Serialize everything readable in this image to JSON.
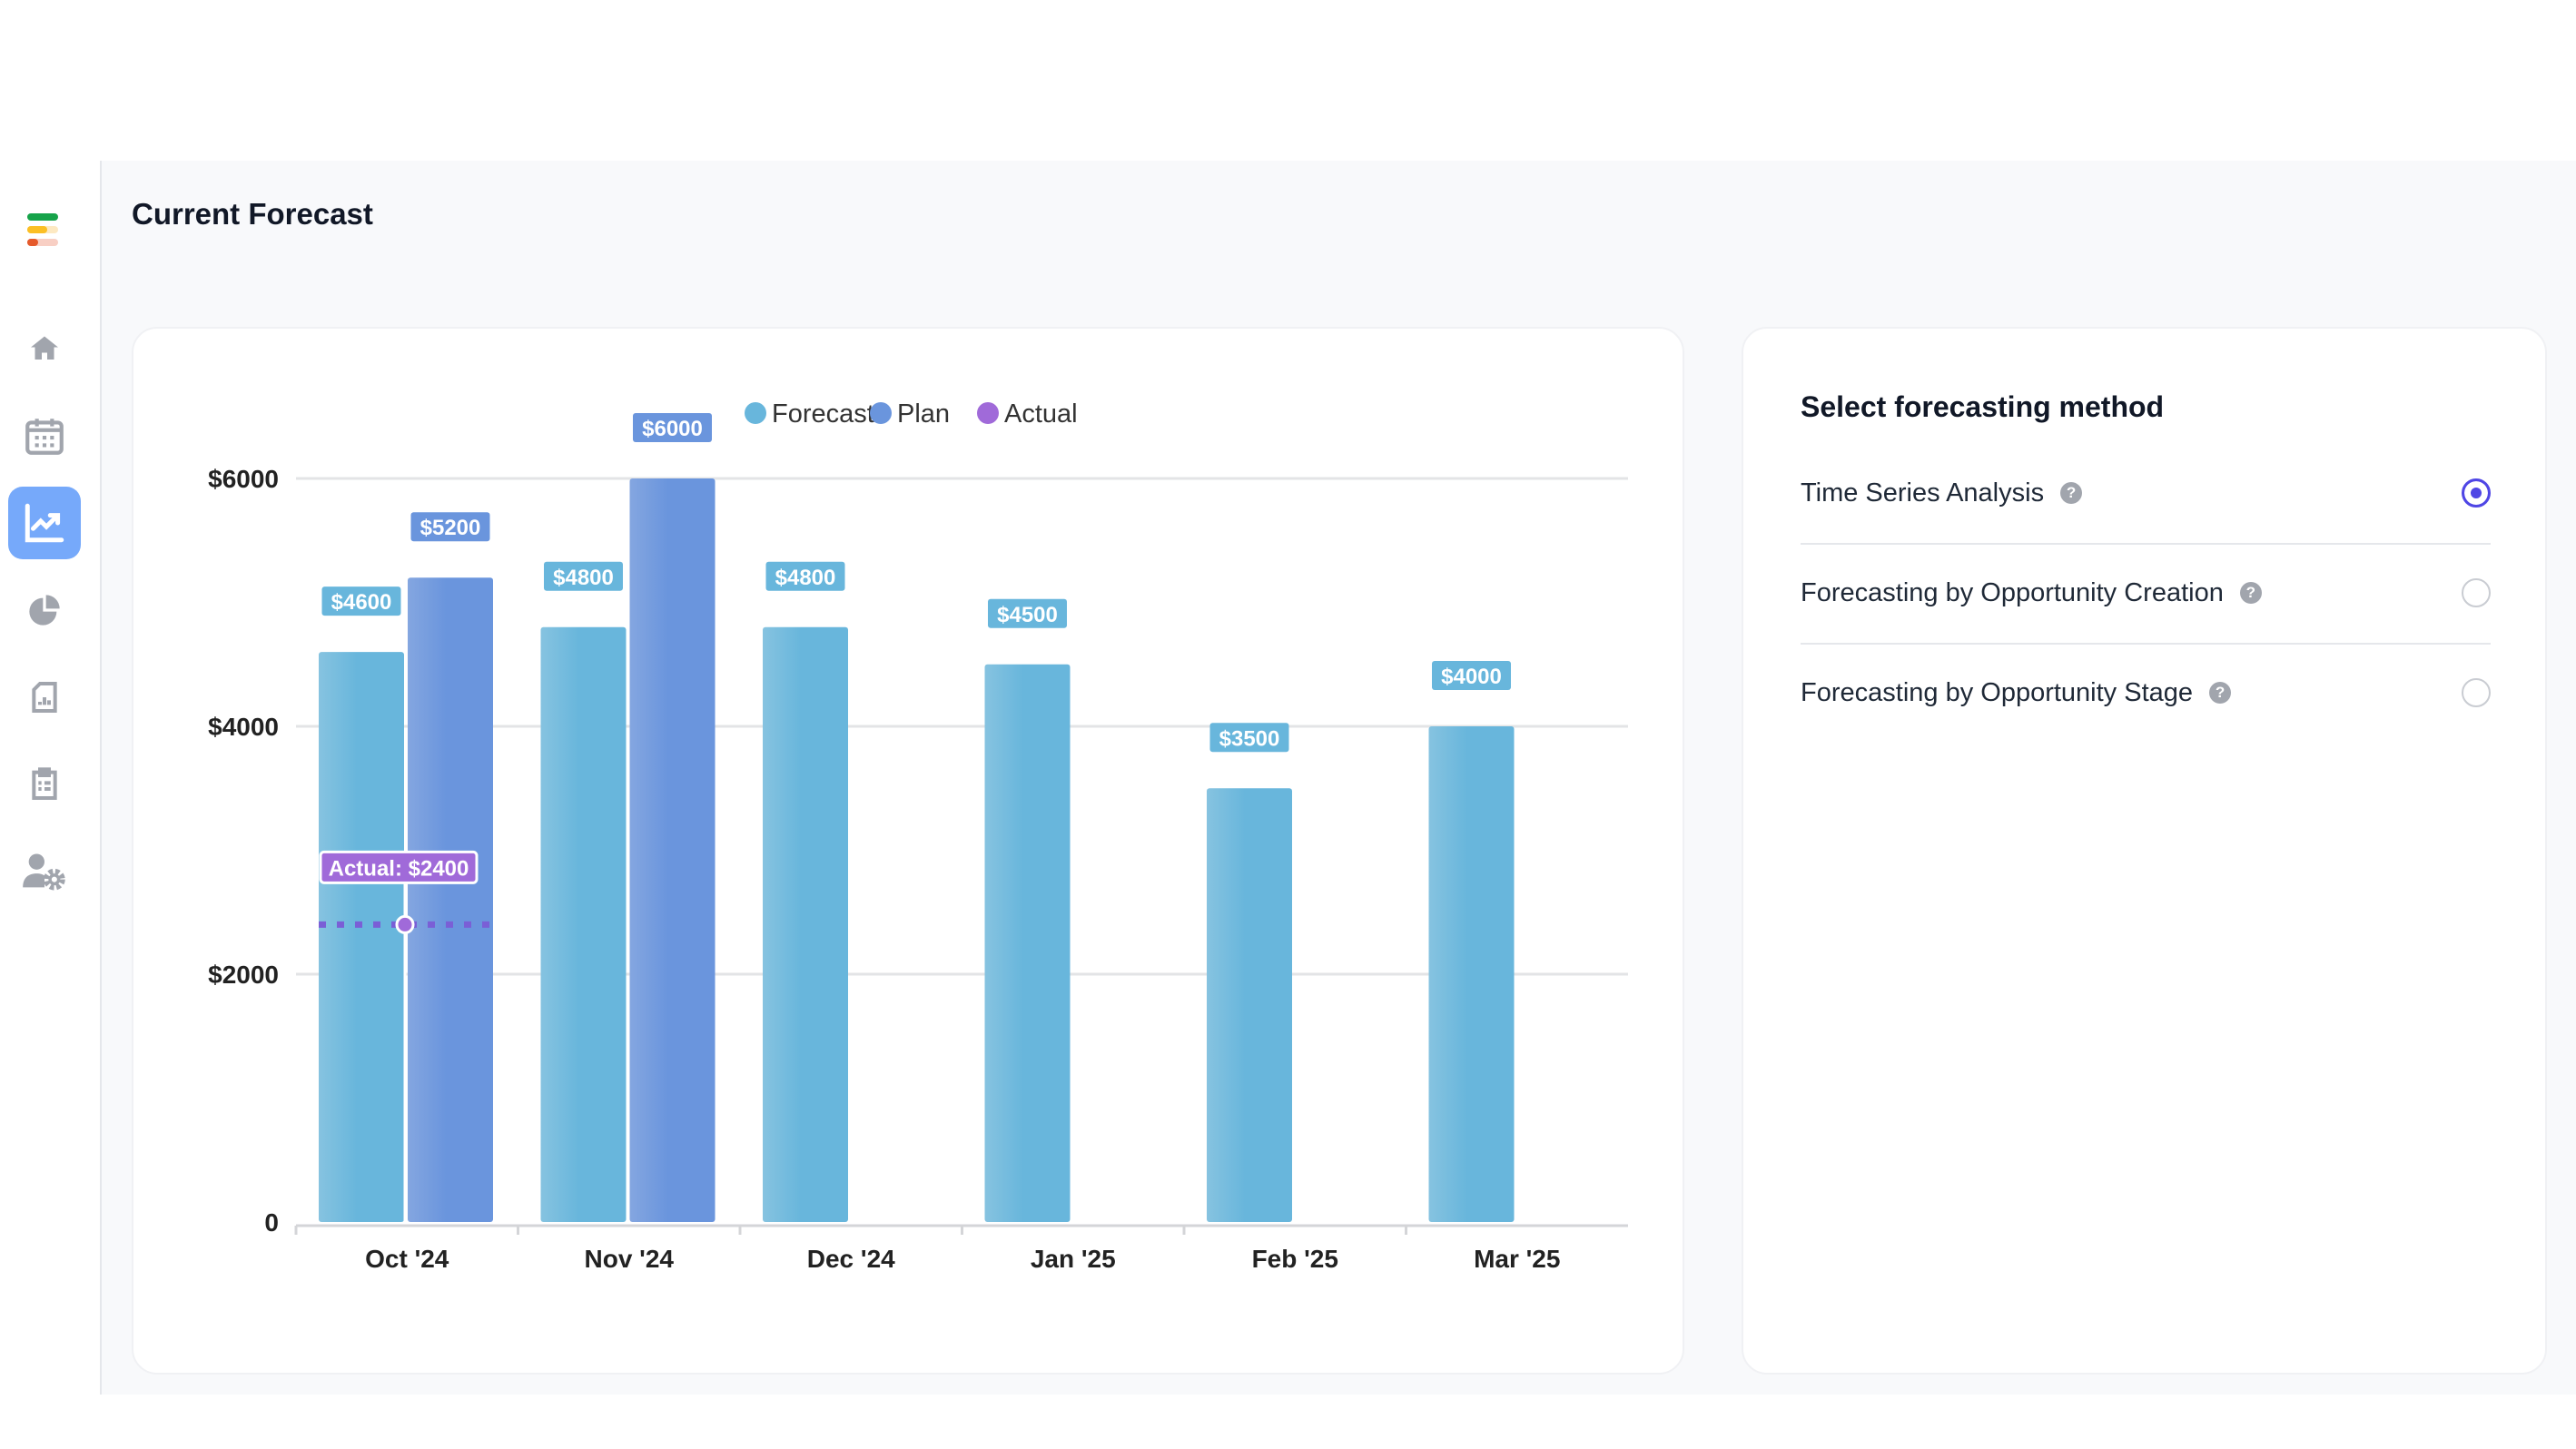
{
  "page_title": "Current Forecast",
  "sidebar": {
    "items": [
      {
        "name": "home",
        "icon": "home-icon"
      },
      {
        "name": "calendar",
        "icon": "calendar-icon"
      },
      {
        "name": "forecast",
        "icon": "trending-chart-icon",
        "active": true
      },
      {
        "name": "pie",
        "icon": "pie-chart-icon"
      },
      {
        "name": "report",
        "icon": "report-icon"
      },
      {
        "name": "clipboard",
        "icon": "clipboard-icon"
      },
      {
        "name": "user-settings",
        "icon": "user-settings-icon"
      }
    ]
  },
  "method_panel": {
    "title": "Select forecasting method",
    "options": [
      {
        "label": "Time Series Analysis",
        "selected": true
      },
      {
        "label": "Forecasting by Opportunity Creation",
        "selected": false
      },
      {
        "label": "Forecasting by Opportunity Stage",
        "selected": false
      }
    ],
    "help_glyph": "?"
  },
  "colors": {
    "forecast": "#68b6dc",
    "plan": "#6a95dd",
    "actual": "#a06ad9",
    "accent": "#4f46e5"
  },
  "chart_data": {
    "type": "bar",
    "categories": [
      "Oct '24",
      "Nov '24",
      "Dec '24",
      "Jan '25",
      "Feb '25",
      "Mar '25"
    ],
    "series": [
      {
        "name": "Forecast",
        "values": [
          4600,
          4800,
          4800,
          4500,
          3500,
          4000
        ],
        "labels": [
          "$4600",
          "$4800",
          "$4800",
          "$4500",
          "$3500",
          "$4000"
        ]
      },
      {
        "name": "Plan",
        "values": [
          5200,
          6000,
          null,
          null,
          null,
          null
        ],
        "labels": [
          "$5200",
          "$6000",
          null,
          null,
          null,
          null
        ]
      },
      {
        "name": "Actual",
        "values": [
          2400,
          null,
          null,
          null,
          null,
          null
        ],
        "labels": [
          "Actual: $2400",
          null,
          null,
          null,
          null,
          null
        ]
      }
    ],
    "yticks": [
      0,
      2000,
      4000,
      6000
    ],
    "ytick_labels": [
      "0",
      "$2000",
      "$4000",
      "$6000"
    ],
    "ylim": [
      0,
      6000
    ],
    "legend": [
      "Forecast",
      "Plan",
      "Actual"
    ],
    "legend_position": "top-center",
    "grid": true
  }
}
